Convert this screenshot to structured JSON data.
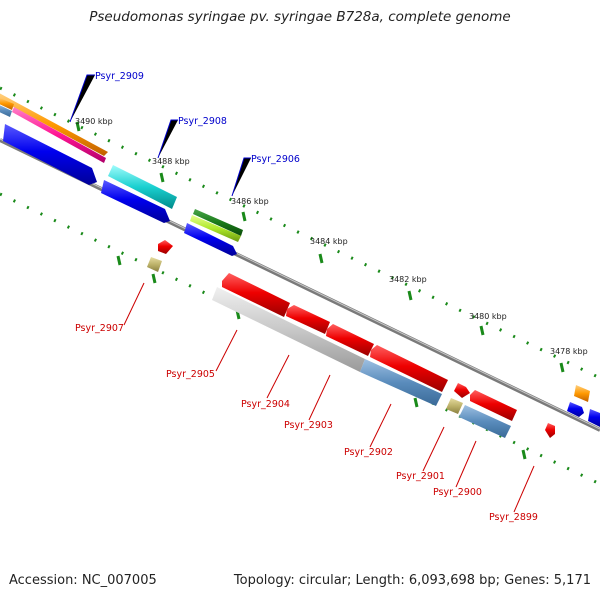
{
  "title": "Pseudomonas syringae pv. syringae B728a, complete genome",
  "footer": {
    "accession": "Accession: NC_007005",
    "summary": "Topology: circular; Length: 6,093,698 bp; Genes: 5,171"
  },
  "ticks": [
    "3490 kbp",
    "3488 kbp",
    "3486 kbp",
    "3484 kbp",
    "3482 kbp",
    "3480 kbp",
    "3478 kbp"
  ],
  "gene_labels": [
    "Psyr_2909",
    "Psyr_2908",
    "Psyr_2906",
    "Psyr_2907",
    "Psyr_2905",
    "Psyr_2904",
    "Psyr_2903",
    "Psyr_2902",
    "Psyr_2901",
    "Psyr_2900",
    "Psyr_2899"
  ],
  "colors": {
    "forward_label": "#0000cc",
    "reverse_label": "#cc0000",
    "backbone": "#8a8a8a",
    "tick_dots": "#1a8a1a"
  }
}
